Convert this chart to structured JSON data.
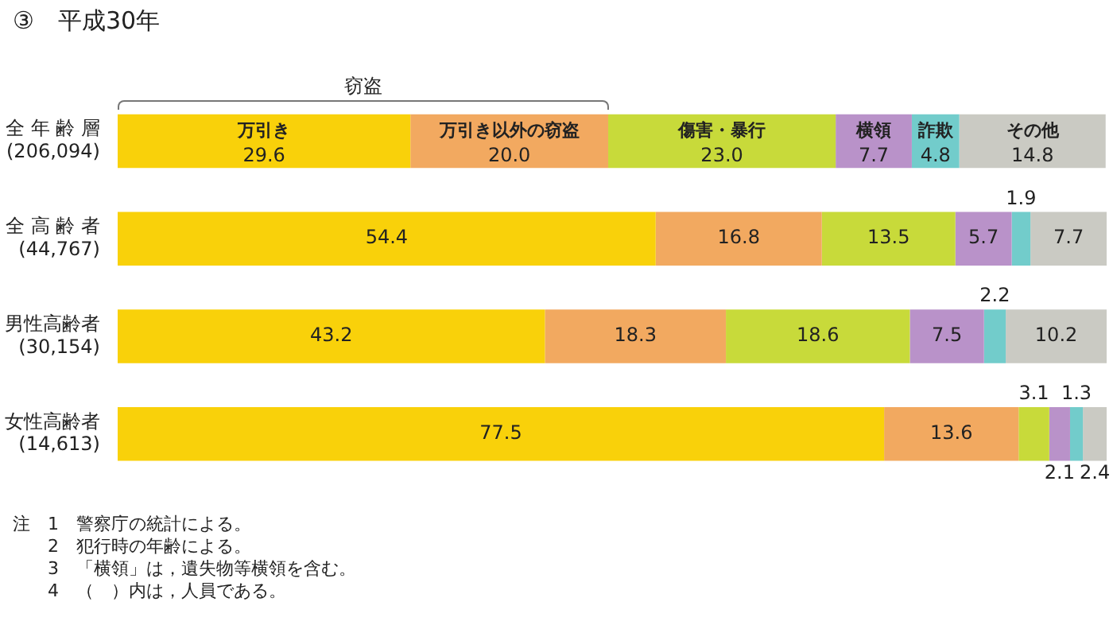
{
  "chart_data": {
    "type": "bar",
    "orientation": "horizontal",
    "stacked": true,
    "title": "③　平成30年",
    "categories": [
      "全 年 齢 層\n(206,094)",
      "全 高 齢 者\n(44,767)",
      "男性高齢者\n(30,154)",
      "女性高齢者\n(14,613)"
    ],
    "series": [
      {
        "name": "万引き",
        "color": "#f9d10a",
        "values": [
          29.6,
          54.4,
          43.2,
          77.5
        ],
        "value_labels": [
          "29.6",
          "54.4",
          "43.2",
          "77.5"
        ]
      },
      {
        "name": "万引き以外の窃盗",
        "color": "#f2a960",
        "values": [
          20.0,
          16.8,
          18.3,
          13.6
        ],
        "value_labels": [
          "20.0",
          "16.8",
          "18.3",
          "13.6"
        ]
      },
      {
        "name": "傷害・暴行",
        "color": "#c8da3a",
        "values": [
          23.0,
          13.5,
          18.6,
          3.1
        ],
        "value_labels": [
          "23.0",
          "13.5",
          "18.6",
          "3.1"
        ]
      },
      {
        "name": "横領",
        "color": "#b992c9",
        "values": [
          7.7,
          5.7,
          7.5,
          2.1
        ],
        "value_labels": [
          "7.7",
          "5.7",
          "7.5",
          "2.1"
        ]
      },
      {
        "name": "詐欺",
        "color": "#72cccb",
        "values": [
          4.8,
          1.9,
          2.2,
          1.3
        ],
        "value_labels": [
          "4.8",
          "1.9",
          "2.2",
          "1.3"
        ]
      },
      {
        "name": "その他",
        "color": "#cacac3",
        "values": [
          14.8,
          7.7,
          10.2,
          2.4
        ],
        "value_labels": [
          "14.8",
          "7.7",
          "10.2",
          "2.4"
        ]
      }
    ],
    "xlim": [
      0,
      100
    ],
    "tick_labels": "y",
    "legend": false,
    "annotations": [
      "窃盗",
      "注　1　警察庁の統計による。",
      "　　2　犯行時の年齢による。",
      "　　3　「横領」は，遺失物等横領を含む。",
      "　　4　（　）内は，人員である。"
    ]
  }
}
